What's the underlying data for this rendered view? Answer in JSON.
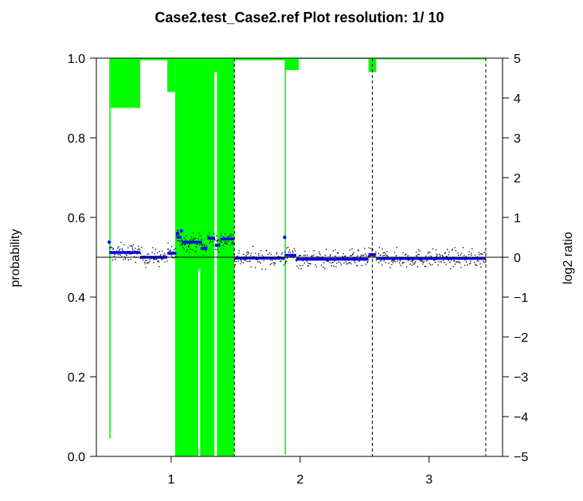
{
  "chart_data": {
    "type": "scatter",
    "title": "Case2.test_Case2.ref  Plot resolution: 1/ 10",
    "xlabel": "",
    "ylabel_left": "probability",
    "ylabel_right": "log2 ratio",
    "xlim": [
      0.42,
      3.57
    ],
    "ylim_left": [
      0.0,
      1.0
    ],
    "ylim_right": [
      -5,
      5
    ],
    "x_ticks": [
      1,
      2,
      3
    ],
    "y_ticks_left": [
      0.0,
      0.2,
      0.4,
      0.6,
      0.8,
      1.0
    ],
    "y_ticks_right": [
      -5,
      -4,
      -3,
      -2,
      -1,
      0,
      1,
      2,
      3,
      4,
      5
    ],
    "baseline_log2": 0,
    "chromosome_boundaries": [
      1.49,
      2.56,
      3.44
    ],
    "colors": {
      "probability_bars": "#00ff00",
      "segment_line": "#0000ff",
      "points": "#000000",
      "frame": "#000000"
    },
    "series": [
      {
        "kind": "probability_bars",
        "color": "#00ff00",
        "bars": [
          {
            "x0": 0.52,
            "x1": 0.53,
            "p": 0.955
          },
          {
            "x0": 0.53,
            "x1": 0.76,
            "p": 0.125
          },
          {
            "x0": 0.76,
            "x1": 0.97,
            "p": 0.005
          },
          {
            "x0": 0.97,
            "x1": 1.03,
            "p": 0.085
          },
          {
            "x0": 1.03,
            "x1": 1.49,
            "p": 1.0
          },
          {
            "x0": 1.49,
            "x1": 1.88,
            "p": 0.005
          },
          {
            "x0": 1.88,
            "x1": 1.89,
            "p": 0.995
          },
          {
            "x0": 1.89,
            "x1": 1.99,
            "p": 0.03
          },
          {
            "x0": 1.99,
            "x1": 2.53,
            "p": 0.002
          },
          {
            "x0": 2.53,
            "x1": 2.59,
            "p": 0.035
          },
          {
            "x0": 2.59,
            "x1": 3.44,
            "p": 0.003
          }
        ],
        "gaps": [
          {
            "x0": 1.21,
            "x1": 1.225,
            "p_top": 0.47
          },
          {
            "x0": 1.335,
            "x1": 1.355,
            "p_top": 0.965
          }
        ]
      },
      {
        "kind": "segments",
        "color": "#0000ff",
        "segments": [
          {
            "x0": 0.52,
            "x1": 0.76,
            "log2": 0.12
          },
          {
            "x0": 0.76,
            "x1": 0.97,
            "log2": 0.0
          },
          {
            "x0": 0.97,
            "x1": 1.04,
            "log2": 0.1
          },
          {
            "x0": 1.04,
            "x1": 1.08,
            "log2": 0.5
          },
          {
            "x0": 1.08,
            "x1": 1.24,
            "log2": 0.38
          },
          {
            "x0": 1.24,
            "x1": 1.28,
            "log2": 0.22
          },
          {
            "x0": 1.28,
            "x1": 1.34,
            "log2": 0.48
          },
          {
            "x0": 1.34,
            "x1": 1.38,
            "log2": 0.3
          },
          {
            "x0": 1.38,
            "x1": 1.49,
            "log2": 0.46
          },
          {
            "x0": 1.49,
            "x1": 1.88,
            "log2": -0.02
          },
          {
            "x0": 1.88,
            "x1": 1.97,
            "log2": 0.05
          },
          {
            "x0": 1.97,
            "x1": 2.53,
            "log2": -0.05
          },
          {
            "x0": 2.53,
            "x1": 2.59,
            "log2": 0.07
          },
          {
            "x0": 2.59,
            "x1": 3.44,
            "log2": -0.03
          }
        ],
        "outlier_points": [
          {
            "x": 0.52,
            "log2": 0.38
          },
          {
            "x": 1.05,
            "log2": 0.6
          },
          {
            "x": 1.08,
            "log2": 0.66
          },
          {
            "x": 1.24,
            "log2": 0.22
          },
          {
            "x": 1.88,
            "log2": 0.5
          }
        ]
      },
      {
        "kind": "log2_points",
        "color": "#000000",
        "note_free_cloud": true,
        "point_spread_log2": 0.16,
        "points_per_unit_x": 260
      }
    ]
  }
}
